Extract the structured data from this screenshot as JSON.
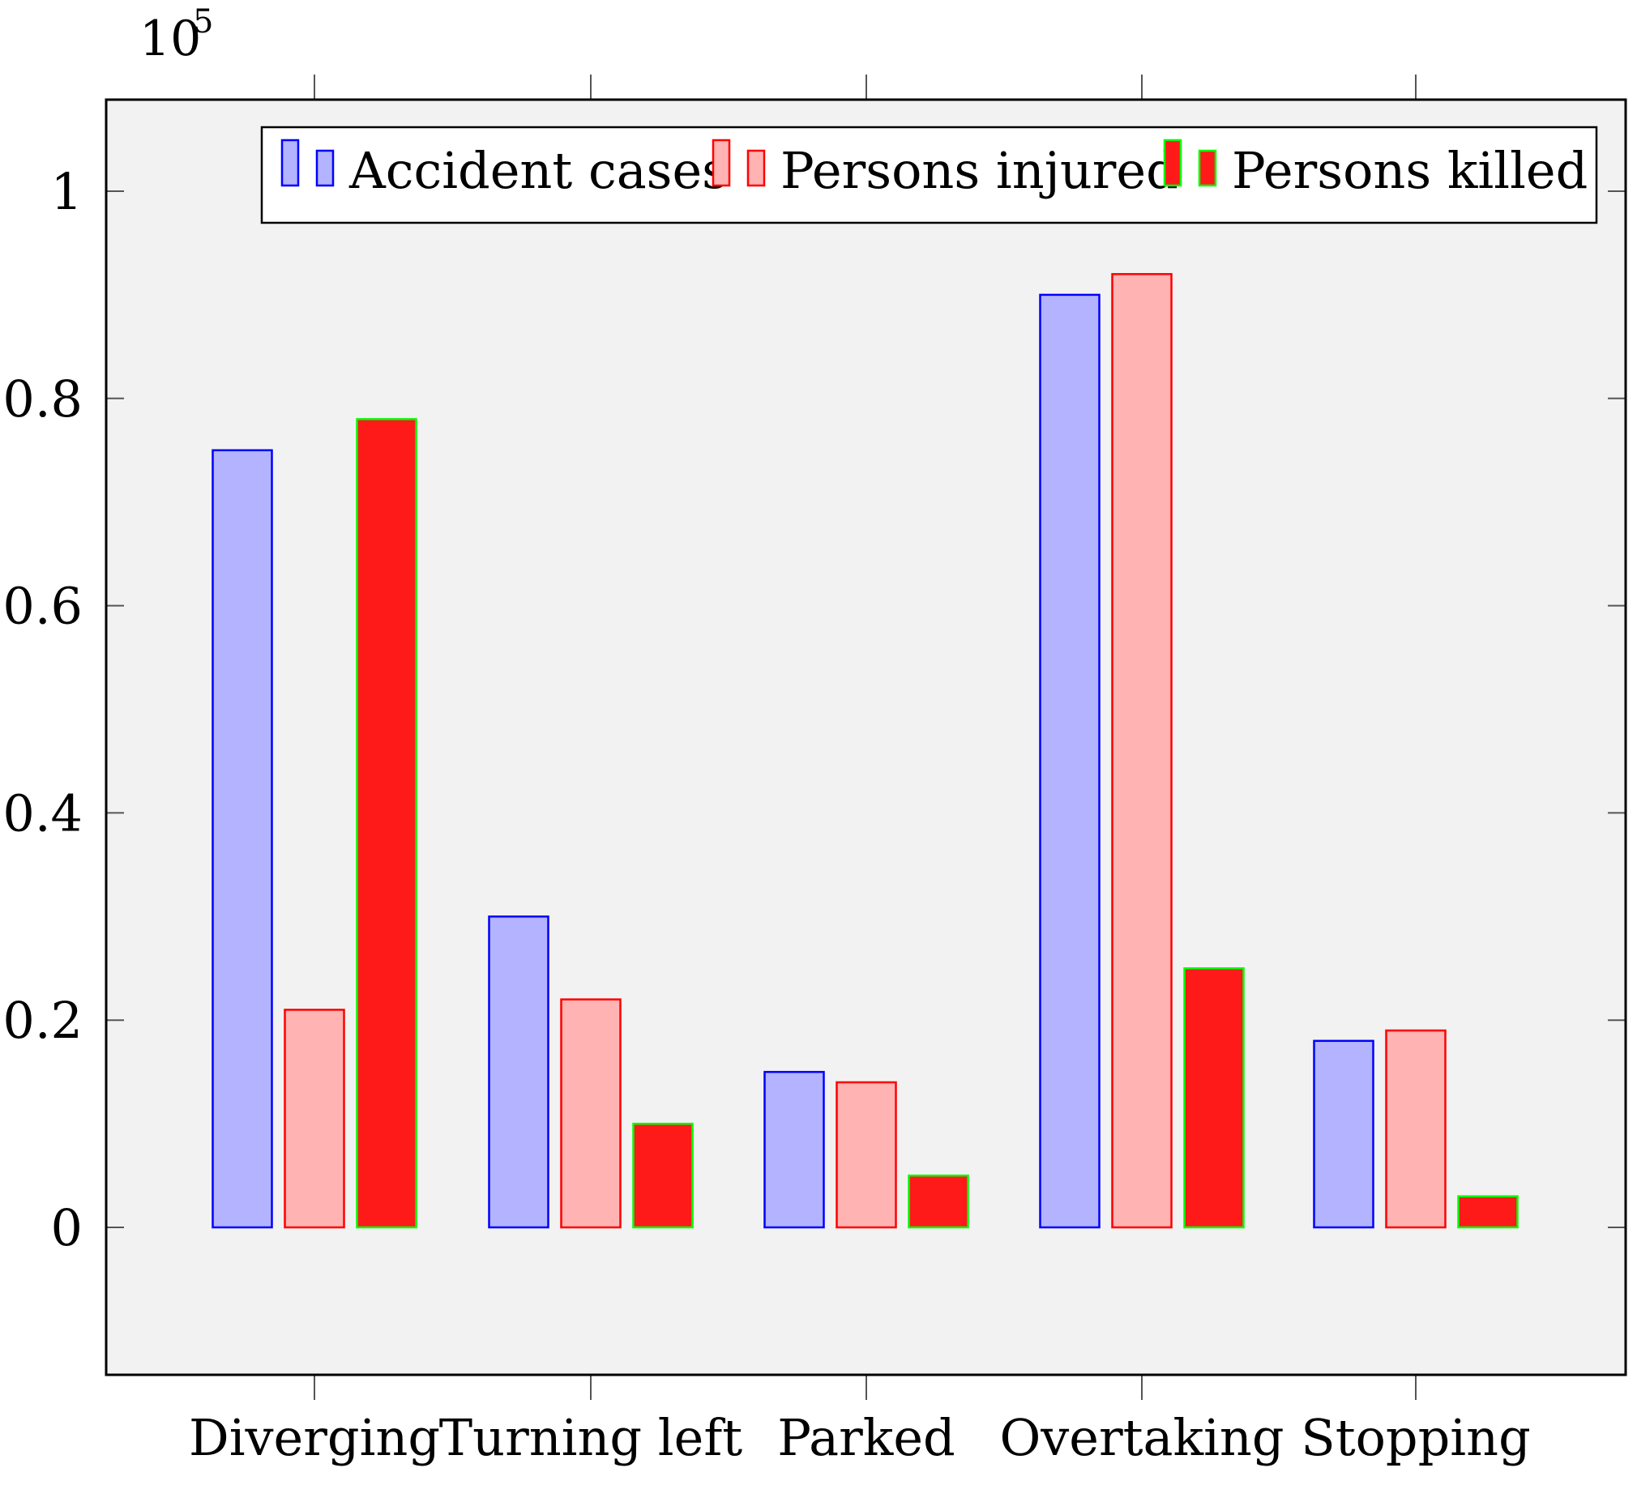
{
  "chart_data": {
    "type": "bar",
    "title": "",
    "xlabel": "",
    "ylabel": "",
    "y_scale_label": "10",
    "y_scale_exponent": "5",
    "ylim": [
      -0.14,
      1.09
    ],
    "yticks": [
      0,
      0.2,
      0.4,
      0.6,
      0.8,
      1
    ],
    "ytick_labels": [
      "0",
      "0.2",
      "0.4",
      "0.6",
      "0.8",
      "1"
    ],
    "categories": [
      "Diverging",
      "Turning left",
      "Parked",
      "Overtaking",
      "Stopping"
    ],
    "series": [
      {
        "name": "Accident cases",
        "values": [
          0.75,
          0.3,
          0.15,
          0.9,
          0.18
        ],
        "fill": "#b3b3ff",
        "stroke": "#0000ff"
      },
      {
        "name": "Persons injured",
        "values": [
          0.21,
          0.22,
          0.14,
          0.92,
          0.19
        ],
        "fill": "#ffb3b3",
        "stroke": "#ff0000"
      },
      {
        "name": "Persons killed",
        "values": [
          0.78,
          0.1,
          0.05,
          0.25,
          0.03
        ],
        "fill": "#ff1a1a",
        "stroke": "#00ff00"
      }
    ],
    "legend_position": "top-right",
    "plot_background": "#f2f2f2"
  }
}
